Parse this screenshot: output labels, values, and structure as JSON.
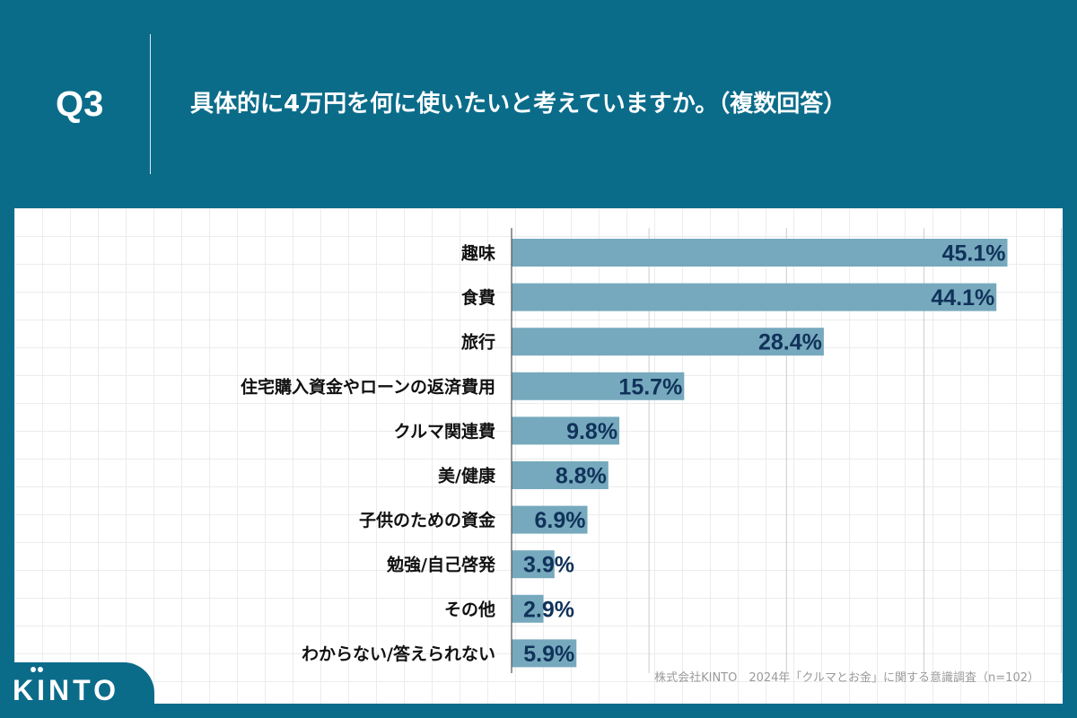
{
  "header": {
    "q_label": "Q3",
    "question": "具体的に4万円を何に使いたいと考えていますか。（複数回答）"
  },
  "chart_data": {
    "type": "bar",
    "orientation": "horizontal",
    "categories": [
      "趣味",
      "食費",
      "旅行",
      "住宅購入資金やローンの返済費用",
      "クルマ関連費",
      "美/健康",
      "子供のための資金",
      "勉強/自己啓発",
      "その他",
      "わからない/答えられない"
    ],
    "values": [
      45.1,
      44.1,
      28.4,
      15.7,
      9.8,
      8.8,
      6.9,
      3.9,
      2.9,
      5.9
    ],
    "value_labels": [
      "45.1%",
      "44.1%",
      "28.4%",
      "15.7%",
      "9.8%",
      "8.8%",
      "6.9%",
      "3.9%",
      "2.9%",
      "5.9%"
    ],
    "xlim": [
      0,
      50
    ],
    "grid_step": 12.5,
    "unit": "%",
    "title": "",
    "xlabel": "",
    "ylabel": ""
  },
  "source": "株式会社KINTO　2024年「クルマとお金」に関する意識調査（n=102）",
  "logo": {
    "text": "KINTO"
  },
  "colors": {
    "background": "#0b6c8a",
    "bar": "#76a9bd",
    "value_text": "#10325a",
    "axis": "#555555",
    "gridline": "#cccccc"
  }
}
